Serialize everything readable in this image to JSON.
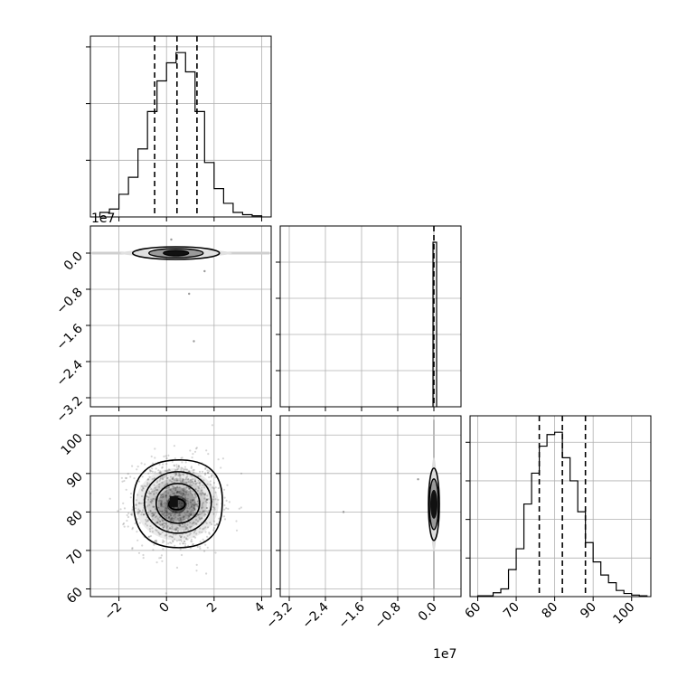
{
  "chart_data": {
    "type": "corner",
    "title": "",
    "offset_labels": {
      "param0_y": "1e7",
      "param0_x": "1e7"
    },
    "hist_param1": {
      "type": "histogram",
      "xlim": [
        -3.2,
        4.4
      ],
      "bin_edges": [
        -2.8,
        -2.4,
        -2.0,
        -1.6,
        -1.2,
        -0.8,
        -0.4,
        0.0,
        0.4,
        0.8,
        1.2,
        1.6,
        2.0,
        2.4,
        2.8,
        3.2,
        3.6,
        4.0
      ],
      "counts": [
        4,
        7,
        20,
        35,
        60,
        93,
        120,
        136,
        145,
        128,
        93,
        48,
        25,
        12,
        4,
        2,
        1
      ],
      "quantiles": [
        -0.5,
        0.44,
        1.28
      ],
      "y_ticks_count": 3
    },
    "hist_param0": {
      "type": "histogram",
      "xlim": [
        -3.4,
        0.6
      ],
      "bin_edges": [
        -0.02,
        0.02,
        0.06
      ],
      "counts": [
        1,
        1
      ],
      "quantile": 0.0,
      "yticks": [
        0.1,
        0.2,
        0.3,
        0.4
      ],
      "x_tick_labels": [
        "−3.2",
        "−2.4",
        "−1.6",
        "−0.8",
        "0.0"
      ],
      "x_tick_values": [
        -3.2,
        -2.4,
        -1.6,
        -0.8,
        0.0
      ]
    },
    "hist_param2": {
      "type": "histogram",
      "xlim": [
        58,
        105
      ],
      "bin_edges": [
        60,
        62,
        64,
        66,
        68,
        70,
        72,
        74,
        76,
        78,
        80,
        82,
        84,
        86,
        88,
        90,
        92,
        94,
        96,
        98,
        100,
        102,
        104
      ],
      "counts": [
        1,
        1,
        5,
        10,
        35,
        62,
        120,
        160,
        195,
        210,
        213,
        180,
        150,
        110,
        70,
        45,
        28,
        18,
        8,
        4,
        2,
        1
      ],
      "quantiles": [
        76.0,
        82.0,
        88.0
      ],
      "x_tick_labels": [
        "60",
        "70",
        "80",
        "90",
        "100"
      ],
      "x_tick_values": [
        60,
        70,
        80,
        90,
        100
      ],
      "y_ticks_count": 3
    },
    "scatter_param1_param0": {
      "type": "scatter",
      "xlim": [
        -3.2,
        4.4
      ],
      "ylim": [
        -3.4,
        0.6
      ],
      "y_tick_labels": [
        "0.0",
        "−0.8",
        "−1.6",
        "−2.4",
        "−3.2"
      ],
      "y_tick_values": [
        0.0,
        -0.8,
        -1.6,
        -2.4,
        -3.2
      ],
      "center": [
        0.4,
        0.0
      ],
      "outliers": [
        [
          0.95,
          -0.9
        ],
        [
          1.15,
          -1.95
        ],
        [
          0.2,
          0.3
        ],
        [
          1.6,
          -0.4
        ]
      ]
    },
    "scatter_param1_param2": {
      "type": "scatter",
      "xlim": [
        -3.2,
        4.4
      ],
      "ylim": [
        58,
        105
      ],
      "x_tick_labels": [
        "−2",
        "0",
        "2",
        "4"
      ],
      "x_tick_values": [
        -2,
        0,
        2,
        4
      ],
      "y_tick_labels": [
        "60",
        "70",
        "80",
        "90",
        "100"
      ],
      "y_tick_values": [
        60,
        70,
        80,
        90,
        100
      ],
      "center": [
        0.44,
        82.0
      ],
      "sigma": [
        0.9,
        6.0
      ]
    },
    "scatter_param0_param2": {
      "type": "scatter",
      "xlim": [
        -3.4,
        0.6
      ],
      "ylim": [
        58,
        105
      ],
      "x_tick_labels": [
        "−3.2",
        "−2.4",
        "−1.6",
        "−0.8",
        "0.0"
      ],
      "x_tick_values": [
        -3.2,
        -2.4,
        -1.6,
        -0.8,
        0.0
      ],
      "center": [
        0.0,
        82.0
      ],
      "outliers": [
        [
          -2.0,
          80.0
        ],
        [
          -0.35,
          88.5
        ]
      ]
    }
  }
}
